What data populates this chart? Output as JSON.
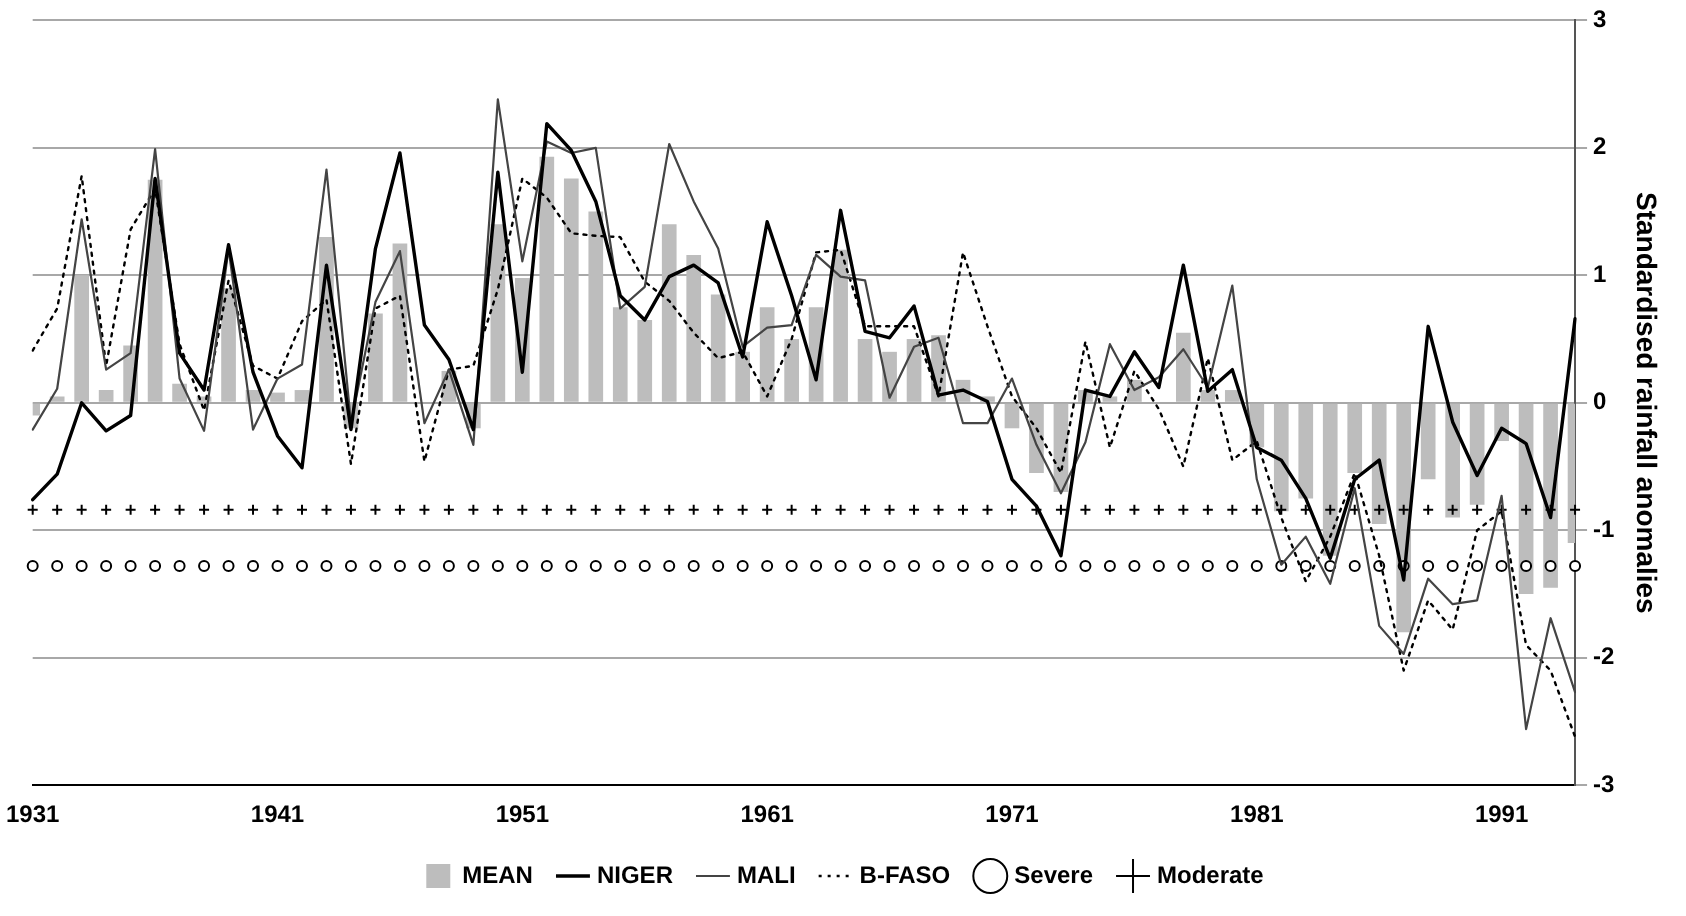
{
  "chart_data": {
    "type": "line",
    "ylabel": "Standardised rainfall anomalies",
    "categories": [
      "1931",
      null,
      null,
      null,
      null,
      null,
      null,
      null,
      null,
      null,
      "1941",
      null,
      null,
      null,
      null,
      null,
      null,
      null,
      null,
      null,
      "1951",
      null,
      null,
      null,
      null,
      null,
      null,
      null,
      null,
      null,
      "1961",
      null,
      null,
      null,
      null,
      null,
      null,
      null,
      null,
      null,
      "1971",
      null,
      null,
      null,
      null,
      null,
      null,
      null,
      null,
      null,
      "1981",
      null,
      null,
      null,
      null,
      null,
      null,
      null,
      null,
      null,
      "1991",
      null,
      null,
      null
    ],
    "ylim": [
      -3,
      3
    ],
    "yticks": [
      -3,
      -2,
      -1,
      0,
      1,
      2,
      3
    ],
    "grid": "y",
    "legend": "bottom",
    "series": [
      {
        "name": "MEAN",
        "type": "bar",
        "color": "#bdbdbd",
        "values": [
          -0.1,
          0.05,
          1.0,
          0.1,
          0.45,
          1.75,
          0.15,
          0.05,
          0.9,
          0.1,
          0.08,
          0.1,
          1.3,
          -0.2,
          0.7,
          1.25,
          0.0,
          0.25,
          -0.2,
          1.4,
          0.98,
          1.93,
          1.76,
          1.5,
          0.75,
          0.65,
          1.4,
          1.16,
          0.85,
          0.4,
          0.75,
          0.5,
          0.75,
          1.2,
          0.5,
          0.4,
          0.5,
          0.53,
          0.18,
          0.05,
          -0.2,
          -0.55,
          -0.7,
          0.1,
          0.05,
          0.18,
          0.0,
          0.55,
          0.1,
          0.1,
          -0.35,
          -0.85,
          -0.75,
          -1.2,
          -0.55,
          -0.95,
          -1.8,
          -0.6,
          -0.9,
          -0.8,
          -0.3,
          -1.5,
          -1.45,
          -1.1
        ]
      },
      {
        "name": "NIGER",
        "color": "#000000",
        "line_style": "solid",
        "marker": "none",
        "values": [
          -0.76,
          -0.56,
          0.0,
          -0.22,
          -0.1,
          1.76,
          0.39,
          0.1,
          1.24,
          0.24,
          -0.26,
          -0.51,
          1.08,
          -0.21,
          1.21,
          1.96,
          0.61,
          0.34,
          -0.21,
          1.81,
          0.24,
          2.19,
          1.98,
          1.58,
          0.84,
          0.65,
          0.99,
          1.08,
          0.94,
          0.36,
          1.42,
          0.84,
          0.18,
          1.51,
          0.56,
          0.51,
          0.76,
          0.06,
          0.1,
          0.01,
          -0.6,
          -0.81,
          -1.2,
          0.1,
          0.05,
          0.4,
          0.12,
          1.08,
          0.09,
          0.26,
          -0.35,
          -0.45,
          -0.75,
          -1.22,
          -0.6,
          -0.45,
          -1.39,
          0.6,
          -0.15,
          -0.57,
          -0.2,
          -0.32,
          -0.9,
          0.66
        ]
      },
      {
        "name": "MALI",
        "color": "#444444",
        "line_style": "solid",
        "marker": "none",
        "values": [
          -0.21,
          0.11,
          1.44,
          0.26,
          0.39,
          1.99,
          0.19,
          -0.22,
          1.21,
          -0.21,
          0.19,
          0.3,
          1.83,
          -0.16,
          0.79,
          1.19,
          -0.16,
          0.26,
          -0.33,
          2.38,
          1.11,
          2.05,
          1.96,
          2.0,
          0.74,
          0.91,
          2.03,
          1.58,
          1.21,
          0.44,
          0.59,
          0.61,
          1.16,
          0.99,
          0.96,
          0.04,
          0.44,
          0.51,
          -0.16,
          -0.16,
          0.19,
          -0.33,
          -0.71,
          -0.31,
          0.46,
          0.1,
          0.2,
          0.42,
          0.12,
          0.92,
          -0.6,
          -1.27,
          -1.05,
          -1.42,
          -0.67,
          -1.75,
          -1.97,
          -1.38,
          -1.58,
          -1.55,
          -0.73,
          -2.56,
          -1.69,
          -2.27
        ]
      },
      {
        "name": "B-FASO",
        "color": "#000000",
        "line_style": "dotted",
        "marker": "none",
        "values": [
          0.41,
          0.74,
          1.78,
          0.29,
          1.36,
          1.68,
          0.46,
          -0.06,
          0.96,
          0.29,
          0.19,
          0.64,
          0.81,
          -0.48,
          0.74,
          0.84,
          -0.46,
          0.26,
          0.29,
          0.89,
          1.76,
          1.61,
          1.33,
          1.31,
          1.3,
          0.95,
          0.8,
          0.55,
          0.35,
          0.4,
          0.05,
          0.5,
          1.18,
          1.2,
          0.6,
          0.6,
          0.6,
          0.05,
          1.18,
          0.6,
          0.05,
          -0.2,
          -0.55,
          0.48,
          -0.35,
          0.25,
          -0.05,
          -0.5,
          0.35,
          -0.45,
          -0.3,
          -0.9,
          -1.4,
          -1.05,
          -0.55,
          -1.2,
          -2.1,
          -1.55,
          -1.78,
          -1.0,
          -0.85,
          -1.9,
          -2.1,
          -2.62
        ]
      },
      {
        "name": "Severe",
        "type": "scatter",
        "color": "#000000",
        "marker": "circle",
        "values": [
          -1.28,
          -1.28,
          -1.28,
          -1.28,
          -1.28,
          -1.28,
          -1.28,
          -1.28,
          -1.28,
          -1.28,
          -1.28,
          -1.28,
          -1.28,
          -1.28,
          -1.28,
          -1.28,
          -1.28,
          -1.28,
          -1.28,
          -1.28,
          -1.28,
          -1.28,
          -1.28,
          -1.28,
          -1.28,
          -1.28,
          -1.28,
          -1.28,
          -1.28,
          -1.28,
          -1.28,
          -1.28,
          -1.28,
          -1.28,
          -1.28,
          -1.28,
          -1.28,
          -1.28,
          -1.28,
          -1.28,
          -1.28,
          -1.28,
          -1.28,
          -1.28,
          -1.28,
          -1.28,
          -1.28,
          -1.28,
          -1.28,
          -1.28,
          -1.28,
          -1.28,
          -1.28,
          -1.28,
          -1.28,
          -1.28,
          -1.28,
          -1.28,
          -1.28,
          -1.28,
          -1.28,
          -1.28,
          -1.28,
          -1.28
        ]
      },
      {
        "name": "Moderate",
        "type": "scatter",
        "color": "#000000",
        "marker": "cross",
        "values": [
          -0.84,
          -0.84,
          -0.84,
          -0.84,
          -0.84,
          -0.84,
          -0.84,
          -0.84,
          -0.84,
          -0.84,
          -0.84,
          -0.84,
          -0.84,
          -0.84,
          -0.84,
          -0.84,
          -0.84,
          -0.84,
          -0.84,
          -0.84,
          -0.84,
          -0.84,
          -0.84,
          -0.84,
          -0.84,
          -0.84,
          -0.84,
          -0.84,
          -0.84,
          -0.84,
          -0.84,
          -0.84,
          -0.84,
          -0.84,
          -0.84,
          -0.84,
          -0.84,
          -0.84,
          -0.84,
          -0.84,
          -0.84,
          -0.84,
          -0.84,
          -0.84,
          -0.84,
          -0.84,
          -0.84,
          -0.84,
          -0.84,
          -0.84,
          -0.84,
          -0.84,
          -0.84,
          -0.84,
          -0.84,
          -0.84,
          -0.84,
          -0.84,
          -0.84,
          -0.84,
          -0.84,
          -0.84,
          -0.84,
          -0.84
        ]
      }
    ]
  }
}
